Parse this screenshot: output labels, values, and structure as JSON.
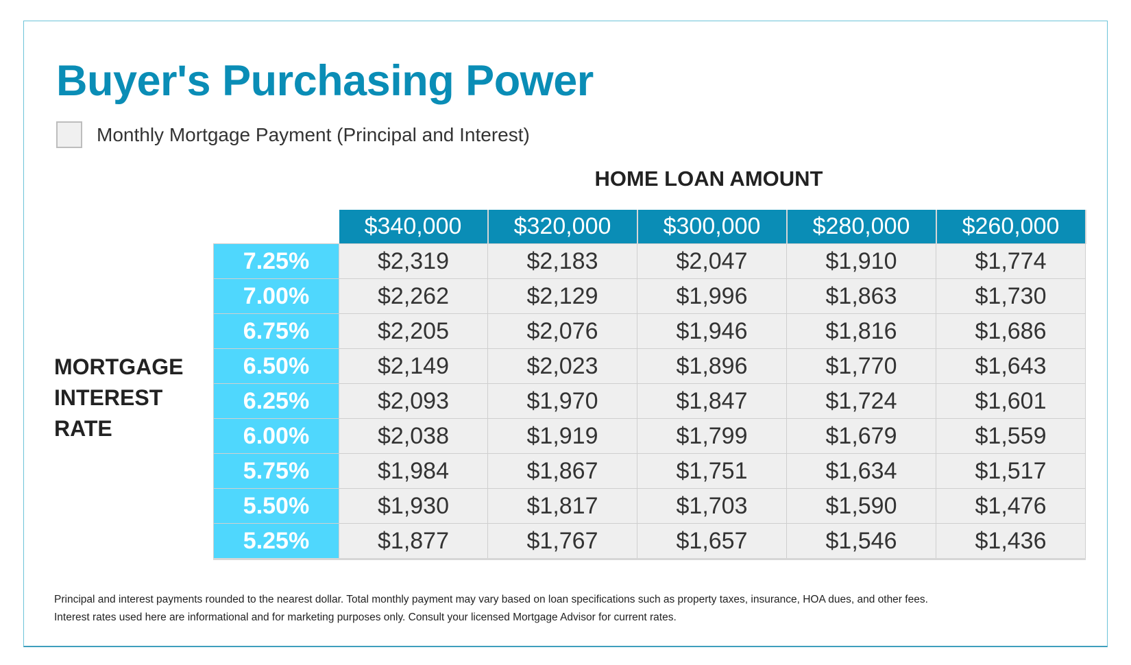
{
  "title": "Buyer's Purchasing Power",
  "legend": {
    "label": "Monthly Mortgage Payment (Principal and Interest)",
    "swatch_color": "#f0f0f0"
  },
  "column_title": "HOME LOAN AMOUNT",
  "row_title": [
    "MORTGAGE",
    "INTEREST",
    "RATE"
  ],
  "colors": {
    "title": "#0a8db6",
    "header": "#0a8db6",
    "rate_cell": "#4fd7fd",
    "cell": "#efefef"
  },
  "table": {
    "columns": [
      "$340,000",
      "$320,000",
      "$300,000",
      "$280,000",
      "$260,000"
    ],
    "rows": [
      {
        "rate": "7.25%",
        "values": [
          "$2,319",
          "$2,183",
          "$2,047",
          "$1,910",
          "$1,774"
        ]
      },
      {
        "rate": "7.00%",
        "values": [
          "$2,262",
          "$2,129",
          "$1,996",
          "$1,863",
          "$1,730"
        ]
      },
      {
        "rate": "6.75%",
        "values": [
          "$2,205",
          "$2,076",
          "$1,946",
          "$1,816",
          "$1,686"
        ]
      },
      {
        "rate": "6.50%",
        "values": [
          "$2,149",
          "$2,023",
          "$1,896",
          "$1,770",
          "$1,643"
        ]
      },
      {
        "rate": "6.25%",
        "values": [
          "$2,093",
          "$1,970",
          "$1,847",
          "$1,724",
          "$1,601"
        ]
      },
      {
        "rate": "6.00%",
        "values": [
          "$2,038",
          "$1,919",
          "$1,799",
          "$1,679",
          "$1,559"
        ]
      },
      {
        "rate": "5.75%",
        "values": [
          "$1,984",
          "$1,867",
          "$1,751",
          "$1,634",
          "$1,517"
        ]
      },
      {
        "rate": "5.50%",
        "values": [
          "$1,930",
          "$1,817",
          "$1,703",
          "$1,590",
          "$1,476"
        ]
      },
      {
        "rate": "5.25%",
        "values": [
          "$1,877",
          "$1,767",
          "$1,657",
          "$1,546",
          "$1,436"
        ]
      }
    ]
  },
  "footnotes": [
    "Principal and interest payments rounded to the nearest dollar. Total monthly payment may vary based on loan specifications such as property taxes, insurance, HOA dues, and other fees.",
    "Interest rates used here are informational and for marketing purposes only. Consult your licensed Mortgage Advisor for current rates."
  ]
}
